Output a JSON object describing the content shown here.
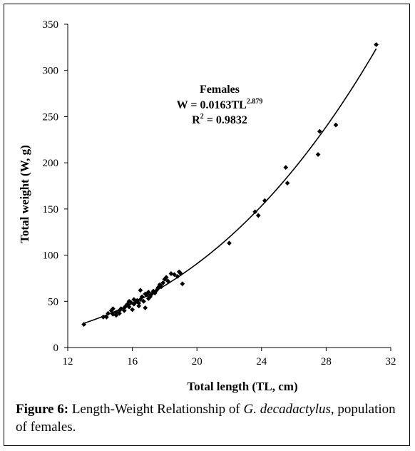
{
  "chart_data": {
    "type": "scatter",
    "xlabel": "Total length (TL, cm)",
    "ylabel": "Total weight (W, g)",
    "xlim": [
      12,
      32
    ],
    "ylim": [
      0,
      350
    ],
    "xticks": [
      12,
      16,
      20,
      24,
      28,
      32
    ],
    "yticks": [
      0,
      50,
      100,
      150,
      200,
      250,
      300,
      350
    ],
    "grid": false,
    "annotation": {
      "title": "Females",
      "equation_prefix": "W = 0.0163TL",
      "exponent": "2.879",
      "r2_prefix": "R",
      "r2_sup": "2",
      "r2_value": " = 0.9832"
    },
    "trendline": {
      "a": 0.0163,
      "b": 2.879,
      "x_range": [
        13,
        31.1
      ]
    },
    "points": [
      [
        13.0,
        25
      ],
      [
        14.2,
        33
      ],
      [
        14.4,
        33
      ],
      [
        14.5,
        37
      ],
      [
        14.7,
        40
      ],
      [
        14.8,
        36
      ],
      [
        14.8,
        42
      ],
      [
        15.0,
        38
      ],
      [
        15.0,
        35
      ],
      [
        15.2,
        40
      ],
      [
        15.2,
        37
      ],
      [
        15.3,
        42
      ],
      [
        15.5,
        40
      ],
      [
        15.5,
        43
      ],
      [
        15.6,
        45
      ],
      [
        15.7,
        47
      ],
      [
        15.8,
        50
      ],
      [
        15.8,
        44
      ],
      [
        15.9,
        49
      ],
      [
        16.0,
        41
      ],
      [
        16.1,
        47
      ],
      [
        16.1,
        52
      ],
      [
        16.2,
        49
      ],
      [
        16.3,
        51
      ],
      [
        16.4,
        45
      ],
      [
        16.4,
        48
      ],
      [
        16.5,
        52
      ],
      [
        16.5,
        62
      ],
      [
        16.6,
        55
      ],
      [
        16.7,
        50
      ],
      [
        16.8,
        58
      ],
      [
        16.8,
        43
      ],
      [
        16.9,
        57
      ],
      [
        17.0,
        60
      ],
      [
        17.0,
        53
      ],
      [
        17.1,
        55
      ],
      [
        17.2,
        58
      ],
      [
        17.3,
        61
      ],
      [
        17.4,
        59
      ],
      [
        17.5,
        62
      ],
      [
        17.6,
        65
      ],
      [
        17.7,
        68
      ],
      [
        17.8,
        66
      ],
      [
        17.9,
        70
      ],
      [
        18.0,
        74
      ],
      [
        18.1,
        76
      ],
      [
        18.2,
        72
      ],
      [
        18.4,
        80
      ],
      [
        18.6,
        79
      ],
      [
        18.8,
        77
      ],
      [
        18.9,
        82
      ],
      [
        19.0,
        80
      ],
      [
        19.1,
        69
      ],
      [
        22.0,
        113
      ],
      [
        23.6,
        147
      ],
      [
        23.8,
        143
      ],
      [
        24.2,
        159
      ],
      [
        25.5,
        195
      ],
      [
        25.6,
        178
      ],
      [
        27.5,
        209
      ],
      [
        27.6,
        234
      ],
      [
        28.6,
        241
      ],
      [
        31.1,
        328
      ]
    ]
  },
  "caption": {
    "label": "Figure 6:",
    "text_before": " Length-Weight Relationship of ",
    "species": "G. decadactylus",
    "text_after": ", population of females."
  }
}
